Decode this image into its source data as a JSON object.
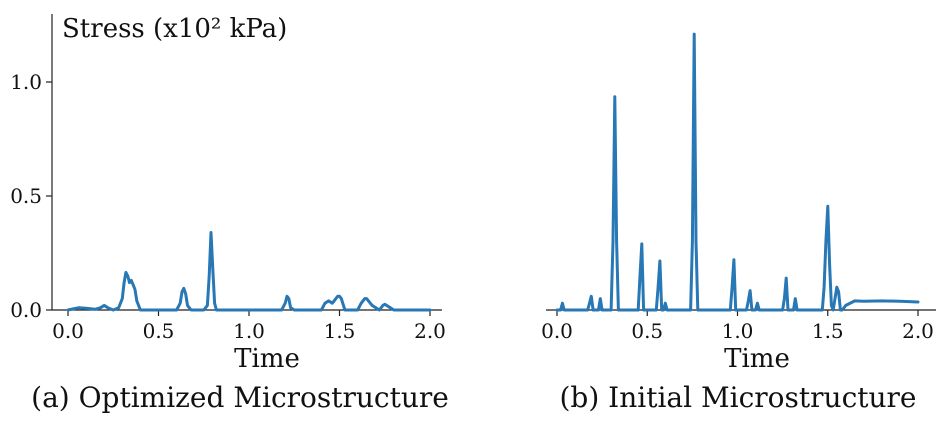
{
  "chart_data": [
    {
      "type": "line",
      "caption": "(a) Optimized Microstructure",
      "ylabel": "Stress (x10² kPa)",
      "xlabel": "Time",
      "xlim": [
        0,
        2.0
      ],
      "ylim": [
        0,
        1.3
      ],
      "xticks": [
        "0.0",
        "0.5",
        "1.0",
        "1.5",
        "2.0"
      ],
      "yticks": [
        "0.0",
        "0.5",
        "1.0"
      ],
      "line_color": "#2878b5",
      "series": [
        {
          "x": [
            0.0,
            0.03,
            0.06,
            0.1,
            0.15,
            0.18,
            0.2,
            0.22,
            0.25,
            0.28,
            0.3,
            0.31,
            0.32,
            0.33,
            0.34,
            0.35,
            0.36,
            0.37,
            0.38,
            0.4,
            0.5,
            0.6,
            0.62,
            0.63,
            0.64,
            0.65,
            0.66,
            0.68,
            0.7,
            0.75,
            0.77,
            0.78,
            0.79,
            0.8,
            0.81,
            0.82,
            0.85,
            1.0,
            1.18,
            1.2,
            1.21,
            1.22,
            1.23,
            1.25,
            1.4,
            1.42,
            1.44,
            1.46,
            1.48,
            1.49,
            1.5,
            1.51,
            1.53,
            1.6,
            1.62,
            1.64,
            1.65,
            1.66,
            1.68,
            1.7,
            1.72,
            1.74,
            1.75,
            1.76,
            1.78,
            1.8,
            2.0
          ],
          "y": [
            0.0,
            0.005,
            0.01,
            0.008,
            0.003,
            0.01,
            0.02,
            0.01,
            0.0,
            0.01,
            0.05,
            0.12,
            0.165,
            0.15,
            0.12,
            0.13,
            0.11,
            0.09,
            0.04,
            0.0,
            0.0,
            0.0,
            0.03,
            0.08,
            0.095,
            0.07,
            0.02,
            0.0,
            0.0,
            0.0,
            0.02,
            0.15,
            0.34,
            0.18,
            0.03,
            0.0,
            0.0,
            0.0,
            0.0,
            0.03,
            0.06,
            0.05,
            0.01,
            0.0,
            0.0,
            0.03,
            0.04,
            0.03,
            0.05,
            0.06,
            0.06,
            0.05,
            0.0,
            0.0,
            0.03,
            0.05,
            0.05,
            0.04,
            0.02,
            0.01,
            0.0,
            0.02,
            0.025,
            0.02,
            0.01,
            0.0,
            0.0
          ]
        }
      ]
    },
    {
      "type": "line",
      "caption": "(b) Initial Microstructure",
      "xlabel": "Time",
      "xlim": [
        0,
        2.0
      ],
      "ylim": [
        0,
        1.3
      ],
      "xticks": [
        "0.0",
        "0.5",
        "1.0",
        "1.5",
        "2.0"
      ],
      "line_color": "#2878b5",
      "series": [
        {
          "x": [
            0.0,
            0.02,
            0.03,
            0.04,
            0.1,
            0.17,
            0.18,
            0.19,
            0.2,
            0.23,
            0.24,
            0.25,
            0.27,
            0.3,
            0.31,
            0.32,
            0.33,
            0.34,
            0.36,
            0.45,
            0.46,
            0.47,
            0.48,
            0.5,
            0.55,
            0.56,
            0.57,
            0.58,
            0.59,
            0.6,
            0.61,
            0.62,
            0.7,
            0.74,
            0.75,
            0.76,
            0.77,
            0.78,
            0.8,
            0.95,
            0.96,
            0.97,
            0.98,
            0.99,
            1.0,
            1.05,
            1.06,
            1.07,
            1.08,
            1.1,
            1.11,
            1.12,
            1.2,
            1.25,
            1.26,
            1.27,
            1.28,
            1.3,
            1.31,
            1.32,
            1.33,
            1.35,
            1.47,
            1.48,
            1.49,
            1.5,
            1.51,
            1.52,
            1.53,
            1.54,
            1.55,
            1.56,
            1.57,
            1.58,
            1.6,
            1.65,
            1.7,
            1.8,
            1.9,
            2.0
          ],
          "y": [
            0.0,
            0.0,
            0.03,
            0.0,
            0.0,
            0.0,
            0.03,
            0.06,
            0.0,
            0.0,
            0.05,
            0.0,
            0.0,
            0.0,
            0.3,
            0.935,
            0.3,
            0.0,
            0.0,
            0.0,
            0.15,
            0.29,
            0.0,
            0.0,
            0.0,
            0.1,
            0.215,
            0.0,
            0.0,
            0.03,
            0.0,
            0.0,
            0.0,
            0.0,
            0.3,
            1.21,
            0.3,
            0.0,
            0.0,
            0.0,
            0.0,
            0.1,
            0.22,
            0.0,
            0.0,
            0.0,
            0.04,
            0.085,
            0.0,
            0.0,
            0.03,
            0.0,
            0.0,
            0.0,
            0.05,
            0.14,
            0.0,
            0.0,
            0.0,
            0.05,
            0.0,
            0.0,
            0.0,
            0.1,
            0.3,
            0.455,
            0.2,
            0.02,
            0.0,
            0.05,
            0.1,
            0.08,
            0.0,
            0.0,
            0.02,
            0.04,
            0.038,
            0.04,
            0.038,
            0.035
          ]
        }
      ]
    }
  ]
}
